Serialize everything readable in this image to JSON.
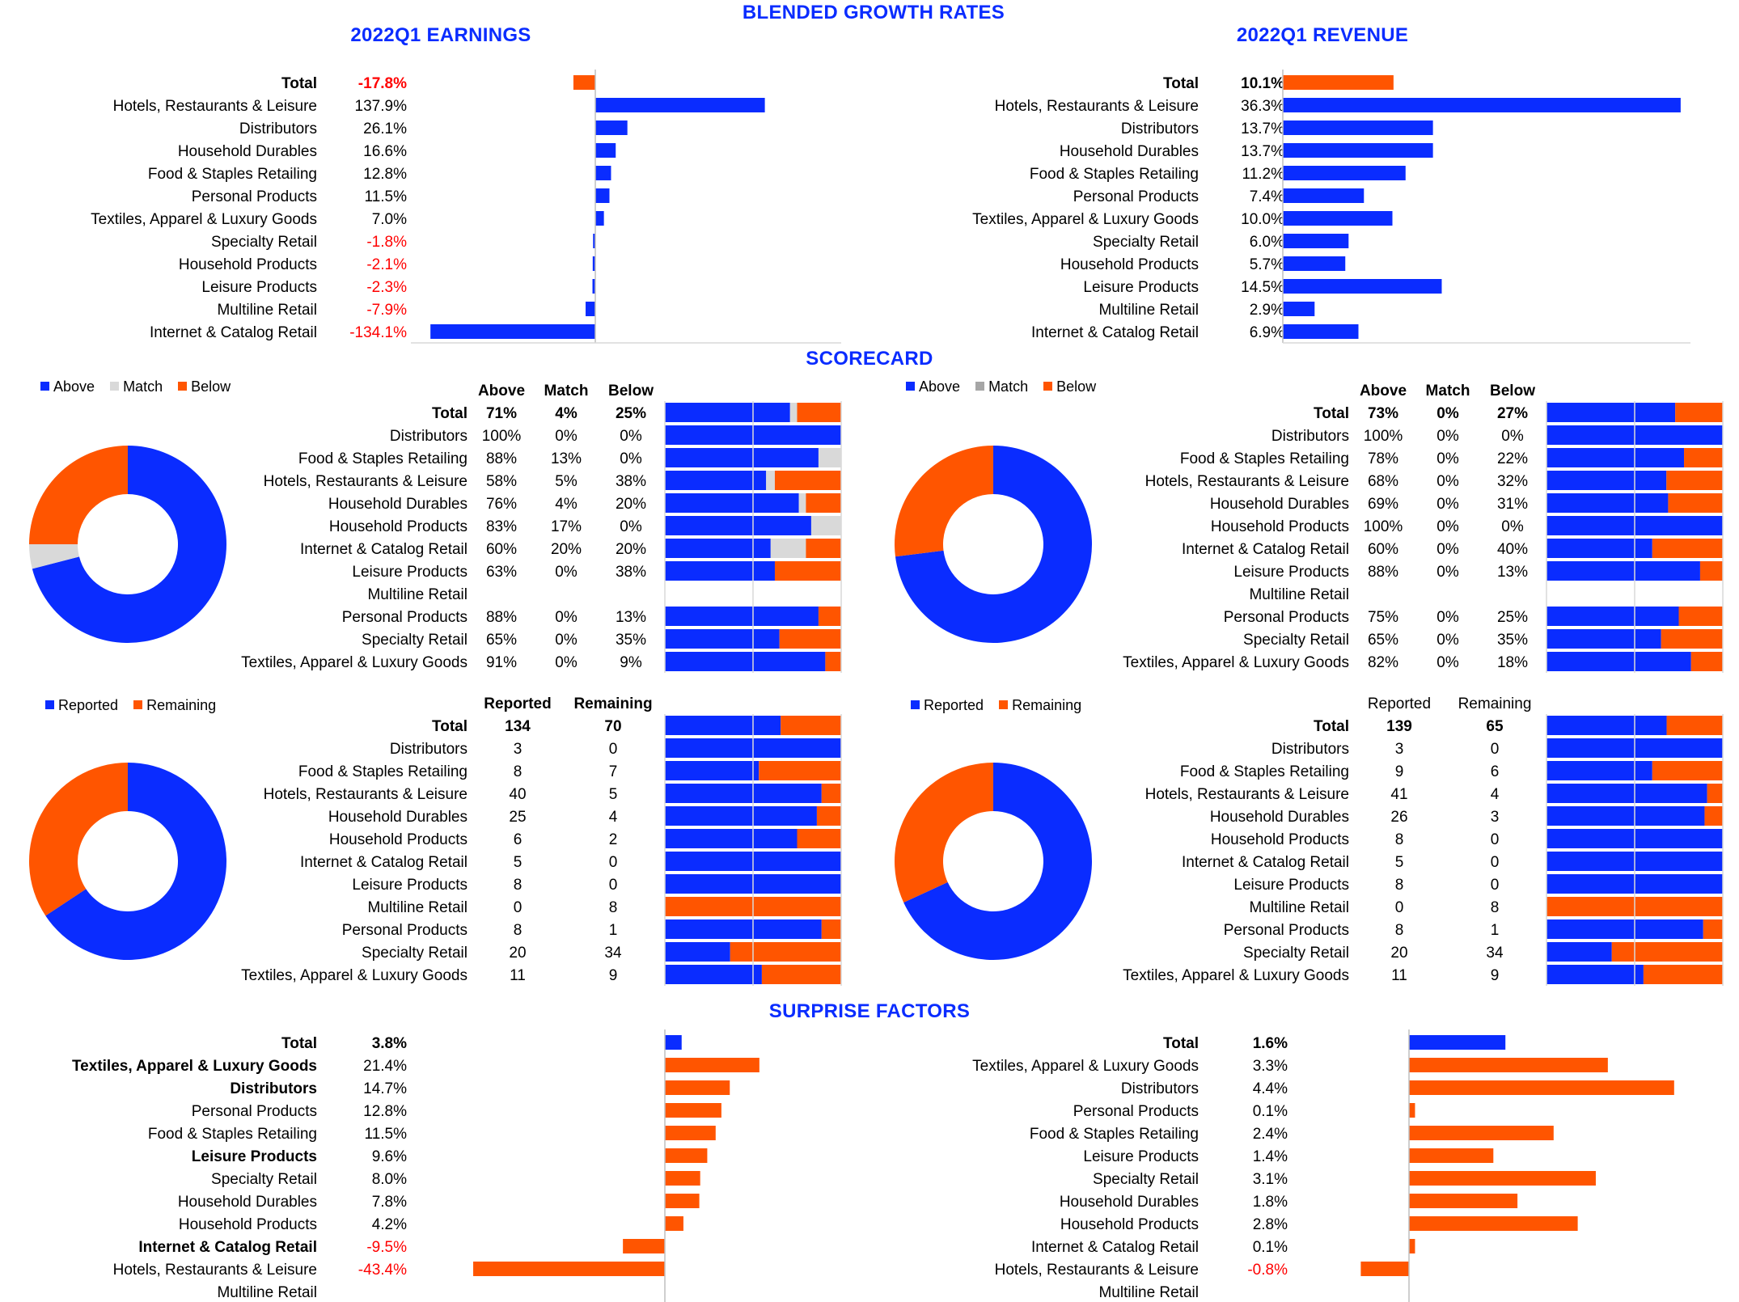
{
  "titles": {
    "main": "BLENDED GROWTH RATES",
    "earnings": "2022Q1 EARNINGS",
    "revenue": "2022Q1 REVENUE",
    "scorecard": "SCORECARD",
    "surprise": "SURPRISE FACTORS"
  },
  "colors": {
    "blue": "#0a2cff",
    "orange": "#ff5500",
    "grey": "#d9d9d9",
    "negative": "#ff0000"
  },
  "chart_data": [
    {
      "id": "earnings-growth",
      "type": "bar",
      "orientation": "horizontal",
      "categories": [
        "Total",
        "Hotels, Restaurants & Leisure",
        "Distributors",
        "Household Durables",
        "Food & Staples Retailing",
        "Personal Products",
        "Textiles, Apparel & Luxury Goods",
        "Specialty Retail",
        "Household Products",
        "Leisure Products",
        "Multiline Retail",
        "Internet & Catalog Retail"
      ],
      "labels": [
        "-17.8%",
        "137.9%",
        "26.1%",
        "16.6%",
        "12.8%",
        "11.5%",
        "7.0%",
        "-1.8%",
        "-2.1%",
        "-2.3%",
        "-7.9%",
        "-134.1%"
      ],
      "values": [
        -17.8,
        137.9,
        26.1,
        16.6,
        12.8,
        11.5,
        7.0,
        -1.8,
        -2.1,
        -2.3,
        -7.9,
        -134.1
      ],
      "xlim": [
        -150,
        200
      ]
    },
    {
      "id": "revenue-growth",
      "type": "bar",
      "orientation": "horizontal",
      "categories": [
        "Total",
        "Hotels, Restaurants & Leisure",
        "Distributors",
        "Household Durables",
        "Food & Staples Retailing",
        "Personal Products",
        "Textiles, Apparel & Luxury Goods",
        "Specialty Retail",
        "Household Products",
        "Leisure Products",
        "Multiline Retail",
        "Internet & Catalog Retail"
      ],
      "labels": [
        "10.1%",
        "36.3%",
        "13.7%",
        "13.7%",
        "11.2%",
        "7.4%",
        "10.0%",
        "6.0%",
        "5.7%",
        "14.5%",
        "2.9%",
        "6.9%"
      ],
      "values": [
        10.1,
        36.3,
        13.7,
        13.7,
        11.2,
        7.4,
        10.0,
        6.0,
        5.7,
        14.5,
        2.9,
        6.9
      ],
      "xlim": [
        0,
        40
      ]
    },
    {
      "id": "earnings-scorecard",
      "type": "bar",
      "stacked": true,
      "legend": [
        "Above",
        "Match",
        "Below"
      ],
      "headers": [
        "Above",
        "Match",
        "Below"
      ],
      "categories": [
        "Total",
        "Distributors",
        "Food & Staples Retailing",
        "Hotels, Restaurants & Leisure",
        "Household Durables",
        "Household Products",
        "Internet & Catalog Retail",
        "Leisure Products",
        "Multiline Retail",
        "Personal Products",
        "Specialty Retail",
        "Textiles, Apparel & Luxury Goods"
      ],
      "cells": [
        [
          "71%",
          "4%",
          "25%"
        ],
        [
          "100%",
          "0%",
          "0%"
        ],
        [
          "88%",
          "13%",
          "0%"
        ],
        [
          "58%",
          "5%",
          "38%"
        ],
        [
          "76%",
          "4%",
          "20%"
        ],
        [
          "83%",
          "17%",
          "0%"
        ],
        [
          "60%",
          "20%",
          "20%"
        ],
        [
          "63%",
          "0%",
          "38%"
        ],
        [
          "",
          "",
          ""
        ],
        [
          "88%",
          "0%",
          "13%"
        ],
        [
          "65%",
          "0%",
          "35%"
        ],
        [
          "91%",
          "0%",
          "9%"
        ]
      ],
      "values": [
        [
          71,
          4,
          25
        ],
        [
          100,
          0,
          0
        ],
        [
          88,
          13,
          0
        ],
        [
          58,
          5,
          38
        ],
        [
          76,
          4,
          20
        ],
        [
          83,
          17,
          0
        ],
        [
          60,
          20,
          20
        ],
        [
          63,
          0,
          38
        ],
        [
          0,
          0,
          0
        ],
        [
          88,
          0,
          13
        ],
        [
          65,
          0,
          35
        ],
        [
          91,
          0,
          9
        ]
      ],
      "donut": [
        71,
        4,
        25
      ]
    },
    {
      "id": "revenue-scorecard",
      "type": "bar",
      "stacked": true,
      "legend": [
        "Above",
        "Match",
        "Below"
      ],
      "headers": [
        "Above",
        "Match",
        "Below"
      ],
      "categories": [
        "Total",
        "Distributors",
        "Food & Staples Retailing",
        "Hotels, Restaurants & Leisure",
        "Household Durables",
        "Household Products",
        "Internet & Catalog Retail",
        "Leisure Products",
        "Multiline Retail",
        "Personal Products",
        "Specialty Retail",
        "Textiles, Apparel & Luxury Goods"
      ],
      "cells": [
        [
          "73%",
          "0%",
          "27%"
        ],
        [
          "100%",
          "0%",
          "0%"
        ],
        [
          "78%",
          "0%",
          "22%"
        ],
        [
          "68%",
          "0%",
          "32%"
        ],
        [
          "69%",
          "0%",
          "31%"
        ],
        [
          "100%",
          "0%",
          "0%"
        ],
        [
          "60%",
          "0%",
          "40%"
        ],
        [
          "88%",
          "0%",
          "13%"
        ],
        [
          "",
          "",
          ""
        ],
        [
          "75%",
          "0%",
          "25%"
        ],
        [
          "65%",
          "0%",
          "35%"
        ],
        [
          "82%",
          "0%",
          "18%"
        ]
      ],
      "values": [
        [
          73,
          0,
          27
        ],
        [
          100,
          0,
          0
        ],
        [
          78,
          0,
          22
        ],
        [
          68,
          0,
          32
        ],
        [
          69,
          0,
          31
        ],
        [
          100,
          0,
          0
        ],
        [
          60,
          0,
          40
        ],
        [
          88,
          0,
          13
        ],
        [
          0,
          0,
          0
        ],
        [
          75,
          0,
          25
        ],
        [
          65,
          0,
          35
        ],
        [
          82,
          0,
          18
        ]
      ],
      "donut": [
        73,
        0,
        27
      ]
    },
    {
      "id": "earnings-reported",
      "type": "bar",
      "stacked": true,
      "legend": [
        "Reported",
        "Remaining"
      ],
      "headers": [
        "Reported",
        "Remaining"
      ],
      "categories": [
        "Total",
        "Distributors",
        "Food & Staples Retailing",
        "Hotels, Restaurants & Leisure",
        "Household Durables",
        "Household Products",
        "Internet & Catalog Retail",
        "Leisure Products",
        "Multiline Retail",
        "Personal Products",
        "Specialty Retail",
        "Textiles, Apparel & Luxury Goods"
      ],
      "cells": [
        [
          "134",
          "70"
        ],
        [
          "3",
          "0"
        ],
        [
          "8",
          "7"
        ],
        [
          "40",
          "5"
        ],
        [
          "25",
          "4"
        ],
        [
          "6",
          "2"
        ],
        [
          "5",
          "0"
        ],
        [
          "8",
          "0"
        ],
        [
          "0",
          "8"
        ],
        [
          "8",
          "1"
        ],
        [
          "20",
          "34"
        ],
        [
          "11",
          "9"
        ]
      ],
      "values": [
        [
          134,
          70
        ],
        [
          3,
          0
        ],
        [
          8,
          7
        ],
        [
          40,
          5
        ],
        [
          25,
          4
        ],
        [
          6,
          2
        ],
        [
          5,
          0
        ],
        [
          8,
          0
        ],
        [
          0,
          8
        ],
        [
          8,
          1
        ],
        [
          20,
          34
        ],
        [
          11,
          9
        ]
      ],
      "donut": [
        134,
        70
      ]
    },
    {
      "id": "revenue-reported",
      "type": "bar",
      "stacked": true,
      "legend": [
        "Reported",
        "Remaining"
      ],
      "headers": [
        "Reported",
        "Remaining"
      ],
      "categories": [
        "Total",
        "Distributors",
        "Food & Staples Retailing",
        "Hotels, Restaurants & Leisure",
        "Household Durables",
        "Household Products",
        "Internet & Catalog Retail",
        "Leisure Products",
        "Multiline Retail",
        "Personal Products",
        "Specialty Retail",
        "Textiles, Apparel & Luxury Goods"
      ],
      "cells": [
        [
          "139",
          "65"
        ],
        [
          "3",
          "0"
        ],
        [
          "9",
          "6"
        ],
        [
          "41",
          "4"
        ],
        [
          "26",
          "3"
        ],
        [
          "8",
          "0"
        ],
        [
          "5",
          "0"
        ],
        [
          "8",
          "0"
        ],
        [
          "0",
          "8"
        ],
        [
          "8",
          "1"
        ],
        [
          "20",
          "34"
        ],
        [
          "11",
          "9"
        ]
      ],
      "values": [
        [
          139,
          65
        ],
        [
          3,
          0
        ],
        [
          9,
          6
        ],
        [
          41,
          4
        ],
        [
          26,
          3
        ],
        [
          8,
          0
        ],
        [
          5,
          0
        ],
        [
          8,
          0
        ],
        [
          0,
          8
        ],
        [
          8,
          1
        ],
        [
          20,
          34
        ],
        [
          11,
          9
        ]
      ],
      "donut": [
        139,
        65
      ]
    },
    {
      "id": "earnings-surprise",
      "type": "bar",
      "orientation": "horizontal",
      "categories": [
        "Total",
        "Textiles, Apparel & Luxury Goods",
        "Distributors",
        "Personal Products",
        "Food & Staples Retailing",
        "Leisure Products",
        "Specialty Retail",
        "Household Durables",
        "Household Products",
        "Internet & Catalog Retail",
        "Hotels, Restaurants & Leisure",
        "Multiline Retail"
      ],
      "labels": [
        "3.8%",
        "21.4%",
        "14.7%",
        "12.8%",
        "11.5%",
        "9.6%",
        "8.0%",
        "7.8%",
        "4.2%",
        "-9.5%",
        "-43.4%",
        ""
      ],
      "values": [
        3.8,
        21.4,
        14.7,
        12.8,
        11.5,
        9.6,
        8.0,
        7.8,
        4.2,
        -9.5,
        -43.4,
        null
      ],
      "bold_categories": [
        "Textiles, Apparel & Luxury Goods",
        "Distributors",
        "Leisure Products",
        "Internet & Catalog Retail"
      ],
      "xlim": [
        -60,
        40
      ]
    },
    {
      "id": "revenue-surprise",
      "type": "bar",
      "orientation": "horizontal",
      "categories": [
        "Total",
        "Textiles, Apparel & Luxury Goods",
        "Distributors",
        "Personal Products",
        "Food & Staples Retailing",
        "Leisure Products",
        "Specialty Retail",
        "Household Durables",
        "Household Products",
        "Internet & Catalog Retail",
        "Hotels, Restaurants & Leisure",
        "Multiline Retail"
      ],
      "labels": [
        "1.6%",
        "3.3%",
        "4.4%",
        "0.1%",
        "2.4%",
        "1.4%",
        "3.1%",
        "1.8%",
        "2.8%",
        "0.1%",
        "-0.8%",
        ""
      ],
      "values": [
        1.6,
        3.3,
        4.4,
        0.1,
        2.4,
        1.4,
        3.1,
        1.8,
        2.8,
        0.1,
        -0.8,
        null
      ],
      "xlim": [
        -1,
        5
      ]
    }
  ]
}
